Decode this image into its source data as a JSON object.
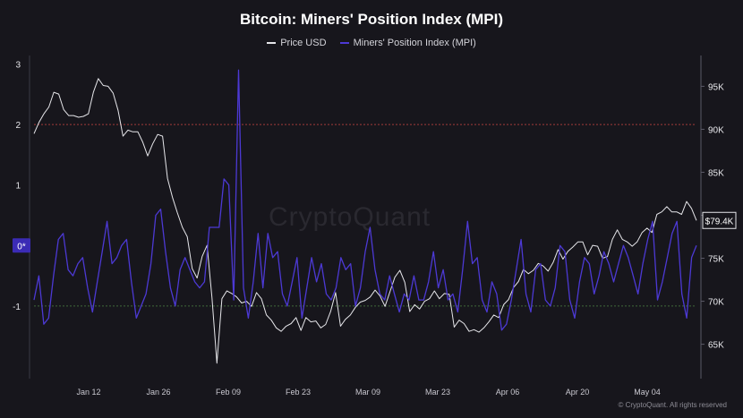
{
  "chart_data": {
    "type": "line",
    "title": "Bitcoin: Miners' Position Index (MPI)",
    "watermark": "CryptoQuant",
    "credit": "© CryptoQuant. All rights reserved",
    "x_tick_labels": [
      "Jan 12",
      "Jan 26",
      "Feb 09",
      "Feb 23",
      "Mar 09",
      "Mar 23",
      "Apr 06",
      "Apr 20",
      "May 04"
    ],
    "left_axis": {
      "ticks": [
        "-1",
        "0",
        "1",
        "2",
        "3"
      ],
      "ylim": [
        -2.2,
        3.2
      ]
    },
    "right_axis": {
      "ticks": [
        "65K",
        "70K",
        "75K",
        "80K",
        "85K",
        "90K",
        "95K"
      ],
      "ylim": [
        61000,
        99000
      ]
    },
    "markers": {
      "left_current": "0*",
      "right_current": "$79.4K"
    },
    "reference_lines": [
      {
        "axis": "left",
        "value": 2,
        "style": "dashed",
        "color": "#a23a3a"
      },
      {
        "axis": "left",
        "value": -1,
        "style": "dashed",
        "color": "#3f6a3a"
      }
    ],
    "legend_position": "top-center",
    "series": [
      {
        "name": "Price USD",
        "axis": "right",
        "color": "#e6e6ea",
        "values": [
          89500,
          90800,
          91800,
          92600,
          94300,
          94100,
          92300,
          91600,
          91600,
          91400,
          91500,
          91800,
          94300,
          95900,
          95100,
          95000,
          94200,
          92200,
          89200,
          89900,
          89700,
          89700,
          88500,
          86900,
          88300,
          89400,
          89200,
          84300,
          82100,
          80300,
          78600,
          77500,
          73800,
          72700,
          75200,
          76500,
          70400,
          62800,
          70300,
          71200,
          70900,
          70500,
          69800,
          70000,
          69400,
          71000,
          70300,
          68400,
          67800,
          66900,
          66500,
          67100,
          67400,
          68100,
          66600,
          68100,
          67600,
          67700,
          66900,
          67300,
          68800,
          71000,
          67100,
          67900,
          68400,
          69300,
          69900,
          70100,
          70500,
          71300,
          70600,
          69400,
          71100,
          72800,
          73600,
          72200,
          68800,
          69600,
          69100,
          70000,
          70300,
          71200,
          70300,
          70900,
          70800,
          67000,
          67800,
          67400,
          66500,
          66700,
          66400,
          66900,
          67600,
          68400,
          68100,
          69600,
          70200,
          71600,
          72300,
          73700,
          73200,
          73600,
          74400,
          74100,
          73500,
          74500,
          76000,
          74900,
          75800,
          76300,
          76900,
          76900,
          75400,
          76500,
          76400,
          75000,
          75200,
          77200,
          78300,
          77200,
          76900,
          76400,
          76900,
          78000,
          78500,
          78000,
          80100,
          80400,
          81000,
          80400,
          80400,
          80100,
          81600,
          80800,
          79400
        ]
      },
      {
        "name": "Miners' Position Index (MPI)",
        "axis": "left",
        "color": "#4c39d4",
        "values": [
          -0.9,
          -0.5,
          -1.3,
          -1.2,
          -0.5,
          0.1,
          0.2,
          -0.4,
          -0.5,
          -0.3,
          -0.2,
          -0.7,
          -1.1,
          -0.6,
          -0.1,
          0.4,
          -0.3,
          -0.2,
          0.0,
          0.1,
          -0.6,
          -1.2,
          -1.0,
          -0.8,
          -0.3,
          0.5,
          0.6,
          -0.1,
          -0.7,
          -1.0,
          -0.4,
          -0.2,
          -0.4,
          -0.6,
          -0.7,
          -0.6,
          0.3,
          0.3,
          0.3,
          1.1,
          1.0,
          -0.9,
          2.9,
          -0.7,
          -1.2,
          -0.6,
          0.2,
          -0.7,
          0.2,
          -0.2,
          -0.1,
          -0.8,
          -1.0,
          -0.6,
          -0.2,
          -1.2,
          -0.7,
          -0.2,
          -0.6,
          -0.3,
          -0.8,
          -0.9,
          -0.7,
          -0.2,
          -0.4,
          -0.3,
          -1.0,
          -0.7,
          -0.1,
          0.3,
          -0.4,
          -0.8,
          -0.9,
          -0.5,
          -0.8,
          -1.1,
          -0.8,
          -0.9,
          -0.5,
          -0.9,
          -0.9,
          -0.6,
          -0.1,
          -0.7,
          -0.4,
          -0.9,
          -0.8,
          -1.1,
          -0.4,
          0.4,
          -0.3,
          -0.2,
          -0.9,
          -1.1,
          -0.6,
          -0.8,
          -1.4,
          -1.3,
          -0.9,
          -0.4,
          0.1,
          -0.8,
          -1.1,
          -0.4,
          -0.3,
          -0.9,
          -1.0,
          -0.7,
          0.0,
          -0.1,
          -0.9,
          -1.2,
          -0.6,
          -0.2,
          -0.3,
          -0.8,
          -0.5,
          -0.1,
          -0.3,
          -0.6,
          -0.3,
          0.0,
          -0.2,
          -0.5,
          -0.8,
          -0.3,
          0.1,
          0.4,
          -0.9,
          -0.6,
          -0.2,
          0.2,
          0.4,
          -0.8,
          -1.2,
          -0.2,
          0.0
        ]
      }
    ]
  }
}
